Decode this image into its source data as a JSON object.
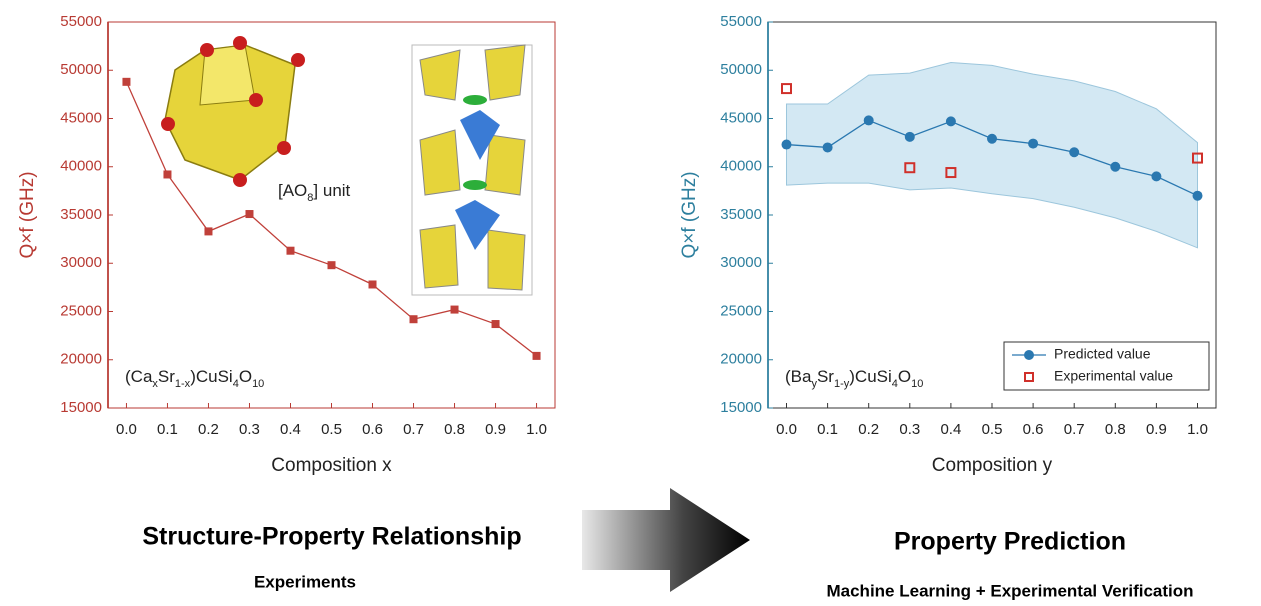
{
  "chart_data": [
    {
      "type": "line",
      "ylabel": "Q×f (GHz)",
      "xlabel": "Composition x",
      "axis_color": "#b83a33",
      "annotation": [
        "(Ca",
        "x",
        "Sr",
        "1-x",
        ")CuSi",
        "4",
        "O",
        "10"
      ],
      "inset_label": [
        "[AO",
        "8",
        "] unit"
      ],
      "xlim": [
        -0.045,
        1.045
      ],
      "ylim": [
        15000,
        55000
      ],
      "xticks": [
        {
          "value": 0,
          "label": "0.0"
        },
        0.1,
        0.2,
        0.3,
        0.4,
        0.5,
        0.6,
        0.7,
        0.8,
        0.9,
        {
          "value": 1,
          "label": "1.0"
        }
      ],
      "yticks": [
        15000,
        20000,
        25000,
        30000,
        35000,
        40000,
        45000,
        50000,
        55000
      ],
      "series": [
        {
          "marker": "square",
          "color": "#c0403a",
          "x": [
            0,
            0.1,
            0.2,
            0.3,
            0.4,
            0.5,
            0.6,
            0.7,
            0.8,
            0.9,
            1
          ],
          "values": [
            48800,
            39200,
            33300,
            35100,
            31300,
            29800,
            27800,
            24200,
            25200,
            23700,
            20400
          ]
        }
      ]
    },
    {
      "type": "line",
      "ylabel": "Q×f (GHz)",
      "xlabel": "Composition y",
      "axis_color": "#2d7f9e",
      "annotation": [
        "(Ba",
        "y",
        "Sr",
        "1-y",
        ")CuSi",
        "4",
        "O",
        "10"
      ],
      "xlim": [
        -0.045,
        1.045
      ],
      "ylim": [
        15000,
        55000
      ],
      "xticks": [
        {
          "value": 0,
          "label": "0.0"
        },
        0.1,
        0.2,
        0.3,
        0.4,
        0.5,
        0.6,
        0.7,
        0.8,
        0.9,
        {
          "value": 1,
          "label": "1.0"
        }
      ],
      "yticks": [
        15000,
        20000,
        25000,
        30000,
        35000,
        40000,
        45000,
        50000,
        55000
      ],
      "band": {
        "color": "#d3e8f3",
        "x": [
          0,
          0.1,
          0.2,
          0.3,
          0.4,
          0.5,
          0.6,
          0.7,
          0.8,
          0.9,
          1
        ],
        "upper": [
          46500,
          46500,
          49500,
          49700,
          50800,
          50500,
          49600,
          48900,
          47800,
          46000,
          42500
        ],
        "lower": [
          38100,
          38300,
          38300,
          37600,
          37800,
          37200,
          36700,
          35800,
          34700,
          33300,
          31600
        ]
      },
      "legend": "lower right",
      "series": [
        {
          "name": "Predicted value",
          "marker": "circle",
          "color": "#2a78b0",
          "x": [
            0,
            0.1,
            0.2,
            0.3,
            0.4,
            0.5,
            0.6,
            0.7,
            0.8,
            0.9,
            1
          ],
          "values": [
            42300,
            42000,
            44800,
            43100,
            44700,
            42900,
            42400,
            41500,
            40000,
            39000,
            37000
          ]
        },
        {
          "name": "Experimental value",
          "marker": "open-square",
          "color": "#d0302a",
          "x": [
            0,
            0.3,
            0.4,
            1
          ],
          "values": [
            48100,
            39900,
            39400,
            40900
          ]
        }
      ]
    }
  ],
  "captions": {
    "left_title": "Structure-Property Relationship",
    "left_sub": "Experiments",
    "right_title": "Property Prediction",
    "right_sub": "Machine Learning + Experimental Verification"
  }
}
